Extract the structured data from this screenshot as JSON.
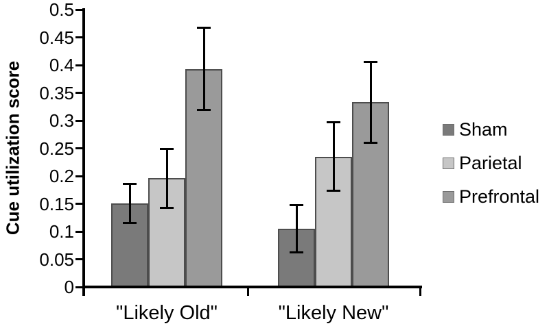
{
  "chart_data": {
    "type": "bar",
    "title": "",
    "ylabel": "Cue utilization score",
    "xlabel": "",
    "categories": [
      "\"Likely Old\"",
      "\"Likely New\""
    ],
    "series": [
      {
        "name": "Sham",
        "color": "#7a7a7a",
        "values": [
          0.151,
          0.105
        ],
        "errors": [
          0.035,
          0.042
        ]
      },
      {
        "name": "Parietal",
        "color": "#c6c6c6",
        "values": [
          0.196,
          0.235
        ],
        "errors": [
          0.053,
          0.062
        ]
      },
      {
        "name": "Prefrontal",
        "color": "#9a9a9a",
        "values": [
          0.393,
          0.333
        ],
        "errors": [
          0.074,
          0.073
        ]
      }
    ],
    "ylim": [
      0,
      0.5
    ],
    "ytick_step": 0.05,
    "ytick_labels": [
      "0",
      "0.05",
      "0.1",
      "0.15",
      "0.2",
      "0.25",
      "0.3",
      "0.35",
      "0.4",
      "0.45",
      "0.5"
    ],
    "legend_position": "right",
    "grid": false,
    "colors": {
      "bar_border": "#4d4d4d",
      "error_bar": "#000000",
      "axis": "#000000",
      "text": "#000000",
      "background": "#ffffff",
      "legend_swatch_border": "#6e6e6e"
    }
  }
}
